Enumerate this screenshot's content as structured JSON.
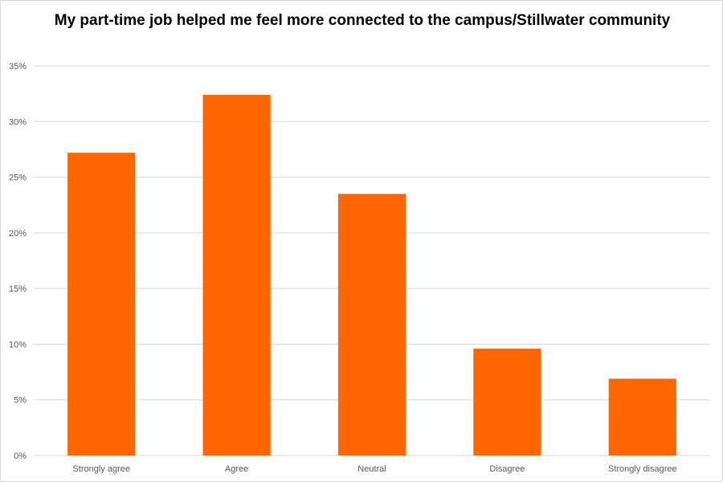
{
  "chart_data": {
    "type": "bar",
    "title": "My part-time job helped me feel more connected to the campus/Stillwater community",
    "categories": [
      "Strongly agree",
      "Agree",
      "Neutral",
      "Disagree",
      "Strongly disagree"
    ],
    "values": [
      27.2,
      32.4,
      23.5,
      9.6,
      6.9
    ],
    "value_format": "percent",
    "ylim": [
      0,
      35
    ],
    "y_ticks": [
      "0%",
      "5%",
      "10%",
      "15%",
      "20%",
      "25%",
      "30%",
      "35%"
    ],
    "y_tick_values": [
      0,
      5,
      10,
      15,
      20,
      25,
      30,
      35
    ],
    "grid": true,
    "legend": "none",
    "bar_color": "#ff6600",
    "grid_color": "#d9d9d9"
  }
}
